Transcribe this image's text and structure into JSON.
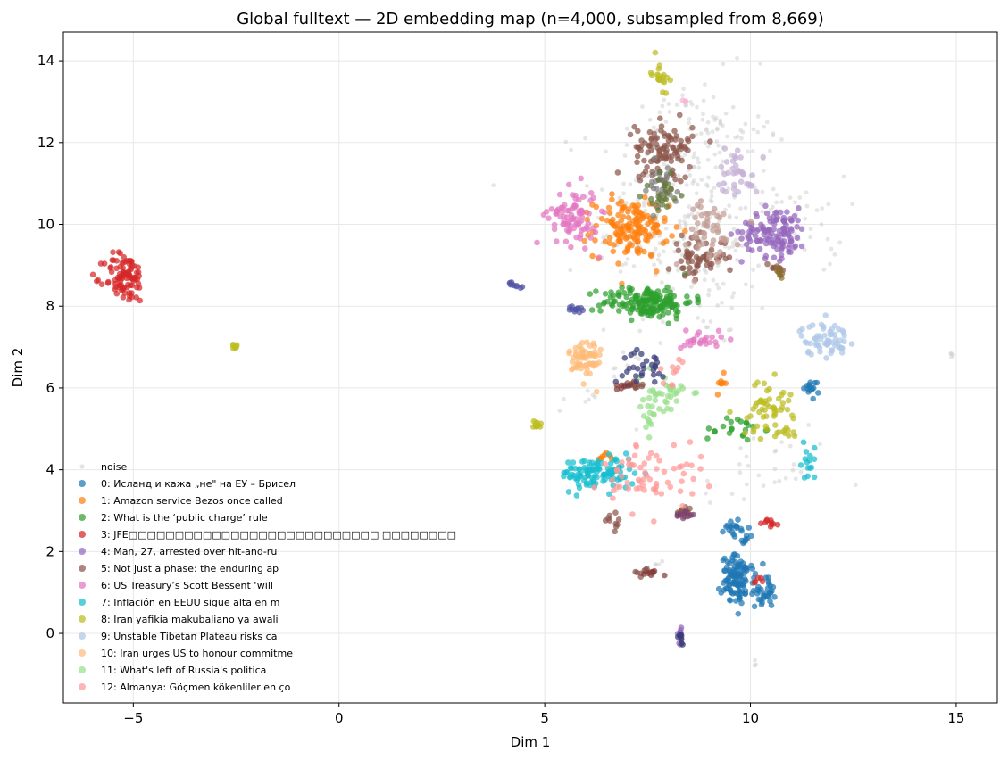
{
  "chart_data": {
    "type": "scatter",
    "title": "Global fulltext — 2D embedding map (n=4,000, subsampled from 8,669)",
    "xlabel": "Dim 1",
    "ylabel": "Dim 2",
    "xlim": [
      -6.7,
      16.0
    ],
    "ylim": [
      -1.7,
      14.7
    ],
    "xticks": [
      -5,
      0,
      5,
      10,
      15
    ],
    "yticks": [
      0,
      2,
      4,
      6,
      8,
      10,
      12,
      14
    ],
    "grid": true,
    "legend_position": "lower-left",
    "series": [
      {
        "name": "noise",
        "color": "#c8c8c8",
        "clusters": [
          {
            "x": 8.6,
            "y": 10.2,
            "sx": 1.2,
            "sy": 1.6,
            "n": 320
          },
          {
            "x": 9.3,
            "y": 12.3,
            "sx": 0.5,
            "sy": 0.4,
            "n": 25
          },
          {
            "x": 11.3,
            "y": 10.0,
            "sx": 0.5,
            "sy": 0.6,
            "n": 25
          },
          {
            "x": 6.5,
            "y": 5.9,
            "sx": 0.6,
            "sy": 0.6,
            "n": 20
          },
          {
            "x": 10.6,
            "y": 4.2,
            "sx": 0.7,
            "sy": 0.5,
            "n": 25
          },
          {
            "x": 8.0,
            "y": 13.0,
            "sx": 0.3,
            "sy": 0.3,
            "n": 10
          },
          {
            "x": 7.8,
            "y": 1.7,
            "sx": 0.05,
            "sy": 0.05,
            "n": 4
          },
          {
            "x": 10.1,
            "y": -0.8,
            "sx": 0.04,
            "sy": 0.08,
            "n": 3
          },
          {
            "x": 14.9,
            "y": 6.8,
            "sx": 0.05,
            "sy": 0.03,
            "n": 4
          },
          {
            "x": 9.3,
            "y": 3.7,
            "sx": 0.3,
            "sy": 0.2,
            "n": 8
          }
        ]
      },
      {
        "name": "0: Исланд и кажа „не\" на ЕУ – Брисел",
        "color": "#1f77b4",
        "clusters": [
          {
            "x": 9.7,
            "y": 1.3,
            "sx": 0.2,
            "sy": 0.3,
            "n": 110
          },
          {
            "x": 10.35,
            "y": 1.0,
            "sx": 0.12,
            "sy": 0.18,
            "n": 30
          },
          {
            "x": 9.6,
            "y": 2.6,
            "sx": 0.12,
            "sy": 0.12,
            "n": 18
          },
          {
            "x": 9.9,
            "y": 2.3,
            "sx": 0.08,
            "sy": 0.06,
            "n": 8
          },
          {
            "x": 11.5,
            "y": 6.0,
            "sx": 0.1,
            "sy": 0.12,
            "n": 15
          }
        ]
      },
      {
        "name": "1: Amazon service Bezos once called",
        "color": "#ff7f0e",
        "clusters": [
          {
            "x": 7.1,
            "y": 9.9,
            "sx": 0.45,
            "sy": 0.35,
            "n": 150
          },
          {
            "x": 9.3,
            "y": 6.1,
            "sx": 0.06,
            "sy": 0.12,
            "n": 8
          },
          {
            "x": 6.4,
            "y": 4.3,
            "sx": 0.1,
            "sy": 0.05,
            "n": 8
          }
        ]
      },
      {
        "name": "2: What is the ‘public charge’ rule",
        "color": "#2ca02c",
        "clusters": [
          {
            "x": 7.5,
            "y": 8.1,
            "sx": 0.55,
            "sy": 0.2,
            "n": 160
          },
          {
            "x": 9.6,
            "y": 5.0,
            "sx": 0.35,
            "sy": 0.15,
            "n": 22
          }
        ]
      },
      {
        "name": "3: JFE□□□□□□□□□□□□□□□□□□□□□□□□□□□ □□□□□□□□",
        "color": "#d62728",
        "clusters": [
          {
            "x": -5.2,
            "y": 8.7,
            "sx": 0.25,
            "sy": 0.3,
            "n": 95
          },
          {
            "x": 10.5,
            "y": 2.7,
            "sx": 0.1,
            "sy": 0.05,
            "n": 10
          },
          {
            "x": 10.2,
            "y": 1.3,
            "sx": 0.08,
            "sy": 0.05,
            "n": 5
          }
        ]
      },
      {
        "name": "4: Man, 27, arrested over hit-and-ru",
        "color": "#9467bd",
        "clusters": [
          {
            "x": 10.6,
            "y": 9.8,
            "sx": 0.4,
            "sy": 0.3,
            "n": 120
          },
          {
            "x": 8.3,
            "y": 0.0,
            "sx": 0.04,
            "sy": 0.12,
            "n": 12
          }
        ]
      },
      {
        "name": "5: Not just a phase: the enduring ap",
        "color": "#8c564b",
        "clusters": [
          {
            "x": 7.9,
            "y": 11.9,
            "sx": 0.35,
            "sy": 0.3,
            "n": 90
          },
          {
            "x": 8.7,
            "y": 9.2,
            "sx": 0.35,
            "sy": 0.25,
            "n": 60
          },
          {
            "x": 8.4,
            "y": 2.95,
            "sx": 0.12,
            "sy": 0.06,
            "n": 14
          },
          {
            "x": 6.7,
            "y": 2.7,
            "sx": 0.1,
            "sy": 0.1,
            "n": 10
          },
          {
            "x": 7.2,
            "y": 6.1,
            "sx": 0.15,
            "sy": 0.05,
            "n": 10
          },
          {
            "x": 7.4,
            "y": 1.5,
            "sx": 0.15,
            "sy": 0.05,
            "n": 10
          },
          {
            "x": 10.6,
            "y": 8.9,
            "sx": 0.15,
            "sy": 0.08,
            "n": 8
          },
          {
            "x": 7.9,
            "y": 11.2,
            "sx": 0.35,
            "sy": 0.3,
            "n": 15
          }
        ]
      },
      {
        "name": "6: US Treasury’s Scott Bessent ‘will",
        "color": "#e377c2",
        "clusters": [
          {
            "x": 5.7,
            "y": 10.2,
            "sx": 0.3,
            "sy": 0.35,
            "n": 85
          },
          {
            "x": 8.8,
            "y": 7.2,
            "sx": 0.25,
            "sy": 0.15,
            "n": 25
          }
        ]
      },
      {
        "name": "7: Inflación en EEUU sigue alta en m",
        "color": "#17becf",
        "clusters": [
          {
            "x": 6.3,
            "y": 3.9,
            "sx": 0.45,
            "sy": 0.2,
            "n": 110
          },
          {
            "x": 11.4,
            "y": 4.2,
            "sx": 0.12,
            "sy": 0.2,
            "n": 15
          }
        ]
      },
      {
        "name": "8: Iran yafikia makubaliano ya awali",
        "color": "#bcbd22",
        "clusters": [
          {
            "x": 10.4,
            "y": 5.5,
            "sx": 0.3,
            "sy": 0.35,
            "n": 55
          },
          {
            "x": 7.8,
            "y": 13.7,
            "sx": 0.1,
            "sy": 0.2,
            "n": 20
          },
          {
            "x": -2.5,
            "y": 7.0,
            "sx": 0.05,
            "sy": 0.04,
            "n": 8
          },
          {
            "x": 4.8,
            "y": 5.1,
            "sx": 0.07,
            "sy": 0.05,
            "n": 10
          },
          {
            "x": 10.9,
            "y": 4.9,
            "sx": 0.1,
            "sy": 0.05,
            "n": 8
          }
        ]
      },
      {
        "name": "9: Unstable Tibetan Plateau risks ca",
        "color": "#aec7e8",
        "clusters": [
          {
            "x": 11.8,
            "y": 7.2,
            "sx": 0.3,
            "sy": 0.2,
            "n": 60
          }
        ]
      },
      {
        "name": "10: Iran urges US to honour commitme",
        "color": "#ffbb78",
        "clusters": [
          {
            "x": 6.0,
            "y": 6.7,
            "sx": 0.2,
            "sy": 0.3,
            "n": 60
          }
        ]
      },
      {
        "name": "11: What's left of Russia's politica",
        "color": "#98df8a",
        "clusters": [
          {
            "x": 7.9,
            "y": 5.8,
            "sx": 0.3,
            "sy": 0.25,
            "n": 40
          },
          {
            "x": 7.6,
            "y": 5.2,
            "sx": 0.1,
            "sy": 0.2,
            "n": 10
          }
        ]
      },
      {
        "name": "12: Almanya: Göçmen kökenliler en ço",
        "color": "#ff9896",
        "clusters": [
          {
            "x": 7.6,
            "y": 3.9,
            "sx": 0.6,
            "sy": 0.4,
            "n": 65
          },
          {
            "x": 8.2,
            "y": 6.4,
            "sx": 0.2,
            "sy": 0.2,
            "n": 10
          }
        ]
      },
      {
        "name": "",
        "color": "#c5b0d5",
        "clusters": [
          {
            "x": 9.7,
            "y": 11.3,
            "sx": 0.25,
            "sy": 0.3,
            "n": 35
          }
        ]
      },
      {
        "name": "",
        "color": "#c49c94",
        "clusters": [
          {
            "x": 8.9,
            "y": 9.8,
            "sx": 0.4,
            "sy": 0.45,
            "n": 50
          }
        ]
      },
      {
        "name": "",
        "color": "#7f7f7f",
        "clusters": [
          {
            "x": 7.8,
            "y": 10.9,
            "sx": 0.3,
            "sy": 0.3,
            "n": 25
          }
        ]
      },
      {
        "name": "",
        "color": "#393b79",
        "clusters": [
          {
            "x": 7.4,
            "y": 6.5,
            "sx": 0.25,
            "sy": 0.2,
            "n": 30
          },
          {
            "x": 8.3,
            "y": -0.1,
            "sx": 0.05,
            "sy": 0.08,
            "n": 8
          }
        ]
      },
      {
        "name": "",
        "color": "#5254a3",
        "clusters": [
          {
            "x": 4.3,
            "y": 8.55,
            "sx": 0.1,
            "sy": 0.04,
            "n": 10
          },
          {
            "x": 5.8,
            "y": 7.9,
            "sx": 0.12,
            "sy": 0.05,
            "n": 12
          }
        ]
      },
      {
        "name": "",
        "color": "#637939",
        "clusters": [
          {
            "x": 7.9,
            "y": 10.8,
            "sx": 0.25,
            "sy": 0.3,
            "n": 25
          }
        ]
      },
      {
        "name": "",
        "color": "#8c6d31",
        "clusters": [
          {
            "x": 10.7,
            "y": 8.85,
            "sx": 0.06,
            "sy": 0.08,
            "n": 10
          }
        ]
      },
      {
        "name": "",
        "color": "#7b4173",
        "clusters": [
          {
            "x": 8.4,
            "y": 2.9,
            "sx": 0.1,
            "sy": 0.06,
            "n": 10
          }
        ]
      },
      {
        "name": "",
        "color": "#843c39",
        "clusters": [
          {
            "x": 6.9,
            "y": 6.05,
            "sx": 0.12,
            "sy": 0.04,
            "n": 8
          },
          {
            "x": 7.6,
            "y": 1.45,
            "sx": 0.12,
            "sy": 0.04,
            "n": 8
          }
        ]
      },
      {
        "name": "",
        "color": "#f7b6d2",
        "clusters": [
          {
            "x": 8.4,
            "y": 13.0,
            "sx": 0.05,
            "sy": 0.05,
            "n": 3
          }
        ]
      }
    ]
  }
}
